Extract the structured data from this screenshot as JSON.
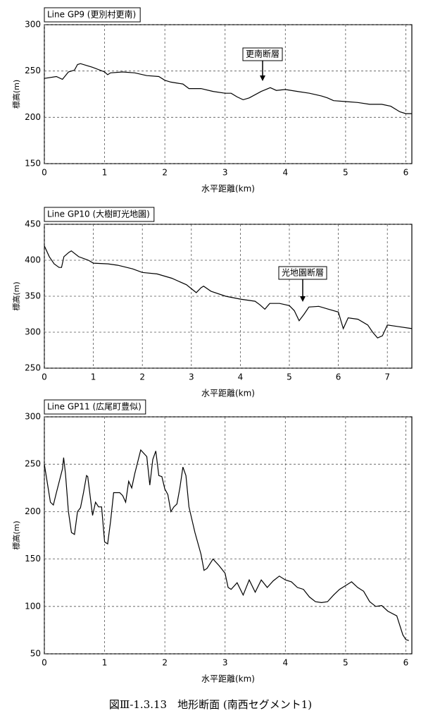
{
  "chart_data": [
    {
      "type": "line",
      "title": "Line GP9 (更別村更南)",
      "xlabel": "水平距離(km)",
      "ylabel": "標高(m)",
      "annotation": "更南断層",
      "color": "#000000",
      "grid": true,
      "xlim": [
        0,
        6.1
      ],
      "xticks": [
        0,
        1,
        2,
        3,
        4,
        5,
        6
      ],
      "ylim": [
        150,
        300
      ],
      "yticks": [
        150,
        200,
        250,
        300
      ],
      "x": [
        0,
        0.2,
        0.3,
        0.4,
        0.5,
        0.55,
        0.6,
        0.8,
        1.0,
        1.05,
        1.1,
        1.3,
        1.5,
        1.7,
        1.9,
        2.0,
        2.1,
        2.3,
        2.4,
        2.6,
        2.8,
        3.0,
        3.1,
        3.2,
        3.3,
        3.4,
        3.6,
        3.75,
        3.85,
        4.0,
        4.2,
        4.4,
        4.6,
        4.7,
        4.8,
        5.0,
        5.2,
        5.4,
        5.6,
        5.75,
        5.9,
        6.0,
        6.1
      ],
      "values": [
        242,
        244,
        241,
        249,
        251,
        257,
        258,
        254,
        249,
        246,
        248,
        249,
        248,
        245,
        244,
        240,
        238,
        236,
        231,
        231,
        228,
        226,
        226,
        222,
        219,
        221,
        228,
        232,
        229,
        230,
        228,
        226,
        223,
        221,
        218,
        217,
        216,
        214,
        214,
        212,
        206,
        204,
        204
      ]
    },
    {
      "type": "line",
      "title": "Line GP10 (大樹町光地園)",
      "xlabel": "水平距離(km)",
      "ylabel": "標高(m)",
      "annotation": "光地園断層",
      "color": "#000000",
      "grid": true,
      "xlim": [
        0,
        7.5
      ],
      "xticks": [
        0,
        1,
        2,
        3,
        4,
        5,
        6,
        7
      ],
      "ylim": [
        250,
        450
      ],
      "yticks": [
        250,
        300,
        350,
        400,
        450
      ],
      "x": [
        0,
        0.1,
        0.2,
        0.3,
        0.35,
        0.4,
        0.5,
        0.55,
        0.7,
        0.9,
        1.0,
        1.3,
        1.5,
        1.8,
        2.0,
        2.3,
        2.6,
        2.9,
        3.1,
        3.2,
        3.25,
        3.4,
        3.7,
        4.0,
        4.3,
        4.4,
        4.5,
        4.6,
        4.8,
        5.0,
        5.1,
        5.2,
        5.3,
        5.4,
        5.6,
        5.8,
        6.0,
        6.1,
        6.2,
        6.4,
        6.6,
        6.7,
        6.8,
        6.9,
        7.0,
        7.2,
        7.5
      ],
      "values": [
        420,
        405,
        395,
        390,
        390,
        405,
        411,
        413,
        405,
        400,
        396,
        395,
        393,
        388,
        383,
        381,
        375,
        366,
        355,
        362,
        364,
        357,
        350,
        346,
        343,
        338,
        332,
        340,
        340,
        337,
        330,
        316,
        325,
        335,
        336,
        332,
        328,
        305,
        320,
        318,
        310,
        300,
        292,
        295,
        310,
        308,
        305
      ]
    },
    {
      "type": "line",
      "title": "Line GP11 (広尾町豊似)",
      "xlabel": "水平距離(km)",
      "ylabel": "標高(m)",
      "color": "#000000",
      "grid": true,
      "xlim": [
        0,
        6.1
      ],
      "xticks": [
        0,
        1,
        2,
        3,
        4,
        5,
        6
      ],
      "ylim": [
        50,
        300
      ],
      "yticks": [
        50,
        100,
        150,
        200,
        250,
        300
      ],
      "x": [
        0,
        0.05,
        0.1,
        0.15,
        0.2,
        0.3,
        0.32,
        0.35,
        0.4,
        0.45,
        0.5,
        0.55,
        0.6,
        0.65,
        0.7,
        0.72,
        0.8,
        0.85,
        0.9,
        0.95,
        1.0,
        1.05,
        1.1,
        1.15,
        1.25,
        1.3,
        1.35,
        1.4,
        1.45,
        1.5,
        1.6,
        1.7,
        1.75,
        1.8,
        1.85,
        1.9,
        1.95,
        2.0,
        2.05,
        2.1,
        2.15,
        2.2,
        2.25,
        2.3,
        2.35,
        2.4,
        2.5,
        2.6,
        2.65,
        2.7,
        2.8,
        2.9,
        3.0,
        3.05,
        3.1,
        3.2,
        3.3,
        3.4,
        3.5,
        3.6,
        3.7,
        3.8,
        3.9,
        4.0,
        4.1,
        4.2,
        4.3,
        4.4,
        4.5,
        4.6,
        4.7,
        4.8,
        4.9,
        5.0,
        5.1,
        5.2,
        5.3,
        5.4,
        5.5,
        5.6,
        5.7,
        5.85,
        5.95,
        6.0,
        6.05
      ],
      "values": [
        250,
        230,
        210,
        207,
        220,
        245,
        257,
        240,
        200,
        178,
        176,
        200,
        204,
        220,
        238,
        237,
        196,
        210,
        205,
        205,
        168,
        166,
        190,
        220,
        220,
        217,
        210,
        232,
        225,
        240,
        265,
        258,
        228,
        255,
        264,
        238,
        237,
        224,
        218,
        200,
        205,
        208,
        225,
        247,
        238,
        205,
        178,
        155,
        138,
        140,
        150,
        143,
        135,
        120,
        118,
        125,
        112,
        128,
        115,
        128,
        120,
        127,
        132,
        128,
        126,
        120,
        118,
        110,
        105,
        104,
        105,
        112,
        118,
        122,
        126,
        120,
        116,
        105,
        100,
        101,
        95,
        90,
        70,
        65,
        64
      ]
    }
  ],
  "caption": "図Ⅲ-1.3.13　地形断面 (南西セグメント1)"
}
